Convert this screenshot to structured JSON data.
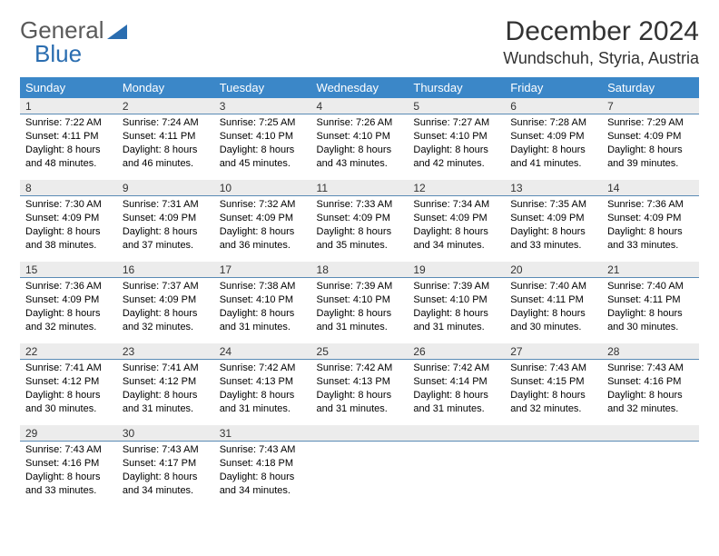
{
  "logo": {
    "text1": "General",
    "text2": "Blue"
  },
  "title": "December 2024",
  "location": "Wundschuh, Styria, Austria",
  "colors": {
    "header_bg": "#3b87c8",
    "header_text": "#ffffff",
    "daynum_bg": "#ececec",
    "daynum_border": "#5a8bb5",
    "logo_gray": "#5a5a5a",
    "logo_blue": "#2a6db0"
  },
  "day_headers": [
    "Sunday",
    "Monday",
    "Tuesday",
    "Wednesday",
    "Thursday",
    "Friday",
    "Saturday"
  ],
  "weeks": [
    [
      {
        "n": "1",
        "sunrise": "Sunrise: 7:22 AM",
        "sunset": "Sunset: 4:11 PM",
        "dl1": "Daylight: 8 hours",
        "dl2": "and 48 minutes."
      },
      {
        "n": "2",
        "sunrise": "Sunrise: 7:24 AM",
        "sunset": "Sunset: 4:11 PM",
        "dl1": "Daylight: 8 hours",
        "dl2": "and 46 minutes."
      },
      {
        "n": "3",
        "sunrise": "Sunrise: 7:25 AM",
        "sunset": "Sunset: 4:10 PM",
        "dl1": "Daylight: 8 hours",
        "dl2": "and 45 minutes."
      },
      {
        "n": "4",
        "sunrise": "Sunrise: 7:26 AM",
        "sunset": "Sunset: 4:10 PM",
        "dl1": "Daylight: 8 hours",
        "dl2": "and 43 minutes."
      },
      {
        "n": "5",
        "sunrise": "Sunrise: 7:27 AM",
        "sunset": "Sunset: 4:10 PM",
        "dl1": "Daylight: 8 hours",
        "dl2": "and 42 minutes."
      },
      {
        "n": "6",
        "sunrise": "Sunrise: 7:28 AM",
        "sunset": "Sunset: 4:09 PM",
        "dl1": "Daylight: 8 hours",
        "dl2": "and 41 minutes."
      },
      {
        "n": "7",
        "sunrise": "Sunrise: 7:29 AM",
        "sunset": "Sunset: 4:09 PM",
        "dl1": "Daylight: 8 hours",
        "dl2": "and 39 minutes."
      }
    ],
    [
      {
        "n": "8",
        "sunrise": "Sunrise: 7:30 AM",
        "sunset": "Sunset: 4:09 PM",
        "dl1": "Daylight: 8 hours",
        "dl2": "and 38 minutes."
      },
      {
        "n": "9",
        "sunrise": "Sunrise: 7:31 AM",
        "sunset": "Sunset: 4:09 PM",
        "dl1": "Daylight: 8 hours",
        "dl2": "and 37 minutes."
      },
      {
        "n": "10",
        "sunrise": "Sunrise: 7:32 AM",
        "sunset": "Sunset: 4:09 PM",
        "dl1": "Daylight: 8 hours",
        "dl2": "and 36 minutes."
      },
      {
        "n": "11",
        "sunrise": "Sunrise: 7:33 AM",
        "sunset": "Sunset: 4:09 PM",
        "dl1": "Daylight: 8 hours",
        "dl2": "and 35 minutes."
      },
      {
        "n": "12",
        "sunrise": "Sunrise: 7:34 AM",
        "sunset": "Sunset: 4:09 PM",
        "dl1": "Daylight: 8 hours",
        "dl2": "and 34 minutes."
      },
      {
        "n": "13",
        "sunrise": "Sunrise: 7:35 AM",
        "sunset": "Sunset: 4:09 PM",
        "dl1": "Daylight: 8 hours",
        "dl2": "and 33 minutes."
      },
      {
        "n": "14",
        "sunrise": "Sunrise: 7:36 AM",
        "sunset": "Sunset: 4:09 PM",
        "dl1": "Daylight: 8 hours",
        "dl2": "and 33 minutes."
      }
    ],
    [
      {
        "n": "15",
        "sunrise": "Sunrise: 7:36 AM",
        "sunset": "Sunset: 4:09 PM",
        "dl1": "Daylight: 8 hours",
        "dl2": "and 32 minutes."
      },
      {
        "n": "16",
        "sunrise": "Sunrise: 7:37 AM",
        "sunset": "Sunset: 4:09 PM",
        "dl1": "Daylight: 8 hours",
        "dl2": "and 32 minutes."
      },
      {
        "n": "17",
        "sunrise": "Sunrise: 7:38 AM",
        "sunset": "Sunset: 4:10 PM",
        "dl1": "Daylight: 8 hours",
        "dl2": "and 31 minutes."
      },
      {
        "n": "18",
        "sunrise": "Sunrise: 7:39 AM",
        "sunset": "Sunset: 4:10 PM",
        "dl1": "Daylight: 8 hours",
        "dl2": "and 31 minutes."
      },
      {
        "n": "19",
        "sunrise": "Sunrise: 7:39 AM",
        "sunset": "Sunset: 4:10 PM",
        "dl1": "Daylight: 8 hours",
        "dl2": "and 31 minutes."
      },
      {
        "n": "20",
        "sunrise": "Sunrise: 7:40 AM",
        "sunset": "Sunset: 4:11 PM",
        "dl1": "Daylight: 8 hours",
        "dl2": "and 30 minutes."
      },
      {
        "n": "21",
        "sunrise": "Sunrise: 7:40 AM",
        "sunset": "Sunset: 4:11 PM",
        "dl1": "Daylight: 8 hours",
        "dl2": "and 30 minutes."
      }
    ],
    [
      {
        "n": "22",
        "sunrise": "Sunrise: 7:41 AM",
        "sunset": "Sunset: 4:12 PM",
        "dl1": "Daylight: 8 hours",
        "dl2": "and 30 minutes."
      },
      {
        "n": "23",
        "sunrise": "Sunrise: 7:41 AM",
        "sunset": "Sunset: 4:12 PM",
        "dl1": "Daylight: 8 hours",
        "dl2": "and 31 minutes."
      },
      {
        "n": "24",
        "sunrise": "Sunrise: 7:42 AM",
        "sunset": "Sunset: 4:13 PM",
        "dl1": "Daylight: 8 hours",
        "dl2": "and 31 minutes."
      },
      {
        "n": "25",
        "sunrise": "Sunrise: 7:42 AM",
        "sunset": "Sunset: 4:13 PM",
        "dl1": "Daylight: 8 hours",
        "dl2": "and 31 minutes."
      },
      {
        "n": "26",
        "sunrise": "Sunrise: 7:42 AM",
        "sunset": "Sunset: 4:14 PM",
        "dl1": "Daylight: 8 hours",
        "dl2": "and 31 minutes."
      },
      {
        "n": "27",
        "sunrise": "Sunrise: 7:43 AM",
        "sunset": "Sunset: 4:15 PM",
        "dl1": "Daylight: 8 hours",
        "dl2": "and 32 minutes."
      },
      {
        "n": "28",
        "sunrise": "Sunrise: 7:43 AM",
        "sunset": "Sunset: 4:16 PM",
        "dl1": "Daylight: 8 hours",
        "dl2": "and 32 minutes."
      }
    ],
    [
      {
        "n": "29",
        "sunrise": "Sunrise: 7:43 AM",
        "sunset": "Sunset: 4:16 PM",
        "dl1": "Daylight: 8 hours",
        "dl2": "and 33 minutes."
      },
      {
        "n": "30",
        "sunrise": "Sunrise: 7:43 AM",
        "sunset": "Sunset: 4:17 PM",
        "dl1": "Daylight: 8 hours",
        "dl2": "and 34 minutes."
      },
      {
        "n": "31",
        "sunrise": "Sunrise: 7:43 AM",
        "sunset": "Sunset: 4:18 PM",
        "dl1": "Daylight: 8 hours",
        "dl2": "and 34 minutes."
      },
      null,
      null,
      null,
      null
    ]
  ]
}
